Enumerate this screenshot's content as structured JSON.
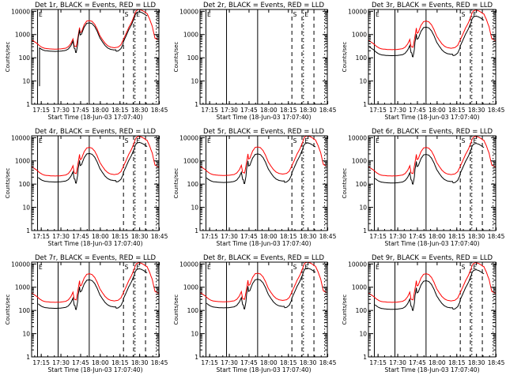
{
  "chart_data": {
    "type": "line",
    "layout": "3x3 grid",
    "y_scale": "log",
    "ylim": [
      1,
      12000
    ],
    "xlim_minutes": [
      0,
      97
    ],
    "x_ticks": [
      {
        "label": "17:15",
        "t": 7.33
      },
      {
        "label": "17:30",
        "t": 22.33
      },
      {
        "label": "17:45",
        "t": 37.33
      },
      {
        "label": "18:00",
        "t": 52.33
      },
      {
        "label": "18:15",
        "t": 67.33
      },
      {
        "label": "18:30",
        "t": 82.33
      },
      {
        "label": "18:45",
        "t": 97.33
      }
    ],
    "y_ticks": [
      {
        "label": "1",
        "v": 1
      },
      {
        "label": "10",
        "v": 10
      },
      {
        "label": "100",
        "v": 100
      },
      {
        "label": "1000",
        "v": 1000
      },
      {
        "label": "10000",
        "v": 10000
      }
    ],
    "ylabel": "Counts/sec",
    "xlabel": "Start Time (18-Jun-03 17:07:40)",
    "series_legend": {
      "black": "Events",
      "red": "LLD"
    },
    "colors": {
      "events": "#000000",
      "lld": "#ff0000",
      "axes": "#000000"
    },
    "marker_letters": [
      "S",
      "E"
    ],
    "panels": [
      {
        "title": "Det 1r, BLACK = Events, RED = LLD",
        "has_data": true,
        "scale": 1.0,
        "black_ratio": 0.8,
        "black_start": 6
      },
      {
        "title": "Det 2r, BLACK = Events, RED = LLD",
        "has_data": false
      },
      {
        "title": "Det 3r, BLACK = Events, RED = LLD",
        "has_data": true,
        "scale": 0.95,
        "black_ratio": 0.55,
        "black_start": 0
      },
      {
        "title": "Det 4r, BLACK = Events, RED = LLD",
        "has_data": true,
        "scale": 0.95,
        "black_ratio": 0.55,
        "black_start": 5
      },
      {
        "title": "Det 5r, BLACK = Events, RED = LLD",
        "has_data": true,
        "scale": 1.0,
        "black_ratio": 0.5,
        "black_start": 5
      },
      {
        "title": "Det 6r, BLACK = Events, RED = LLD",
        "has_data": true,
        "scale": 0.95,
        "black_ratio": 0.5,
        "black_start": 5
      },
      {
        "title": "Det 7r, BLACK = Events, RED = LLD",
        "has_data": true,
        "scale": 0.95,
        "black_ratio": 0.55,
        "black_start": 5
      },
      {
        "title": "Det 8r, BLACK = Events, RED = LLD",
        "has_data": true,
        "scale": 1.0,
        "black_ratio": 0.55,
        "black_start": 5
      },
      {
        "title": "Det 9r, BLACK = Events, RED = LLD",
        "has_data": true,
        "scale": 0.95,
        "black_ratio": 0.5,
        "black_start": 5
      }
    ],
    "vertical_markers": [
      {
        "t": 4.5,
        "style": "solid",
        "label": "E"
      },
      {
        "t": 20.2,
        "style": "solid"
      },
      {
        "t": 43.9,
        "style": "solid"
      },
      {
        "t": 70.0,
        "style": "dashed",
        "label": "S"
      },
      {
        "t": 77.7,
        "style": "dashed"
      },
      {
        "t": 78.8,
        "style": "dotted",
        "label": "E"
      },
      {
        "t": 86.8,
        "style": "dashed"
      },
      {
        "t": 95.0,
        "style": "dotted"
      }
    ],
    "lld_profile": [
      [
        0,
        600
      ],
      [
        2,
        500
      ],
      [
        4,
        420
      ],
      [
        6,
        330
      ],
      [
        8,
        280
      ],
      [
        10,
        255
      ],
      [
        14,
        240
      ],
      [
        18,
        235
      ],
      [
        22,
        240
      ],
      [
        26,
        260
      ],
      [
        28,
        300
      ],
      [
        30,
        420
      ],
      [
        31.5,
        650
      ],
      [
        32.5,
        320
      ],
      [
        34,
        300
      ],
      [
        35.5,
        900
      ],
      [
        36.5,
        2000
      ],
      [
        37,
        1200
      ],
      [
        38,
        1300
      ],
      [
        40,
        2600
      ],
      [
        42,
        3800
      ],
      [
        44,
        4000
      ],
      [
        46,
        3700
      ],
      [
        48,
        2800
      ],
      [
        50,
        1700
      ],
      [
        52,
        900
      ],
      [
        54,
        600
      ],
      [
        56,
        420
      ],
      [
        58,
        330
      ],
      [
        60,
        290
      ],
      [
        63,
        270
      ],
      [
        66,
        290
      ],
      [
        68,
        360
      ],
      [
        70,
        620
      ],
      [
        72,
        1100
      ],
      [
        74,
        2000
      ],
      [
        76,
        3200
      ],
      [
        78,
        6000
      ],
      [
        79,
        9000
      ],
      [
        80,
        11000
      ],
      [
        82,
        12000
      ],
      [
        84,
        11000
      ],
      [
        86,
        9500
      ],
      [
        87,
        8500
      ],
      [
        88,
        8000
      ],
      [
        90,
        4500
      ],
      [
        92,
        2200
      ],
      [
        93,
        1200
      ],
      [
        94,
        700
      ],
      [
        96,
        600
      ],
      [
        97,
        580
      ]
    ]
  }
}
